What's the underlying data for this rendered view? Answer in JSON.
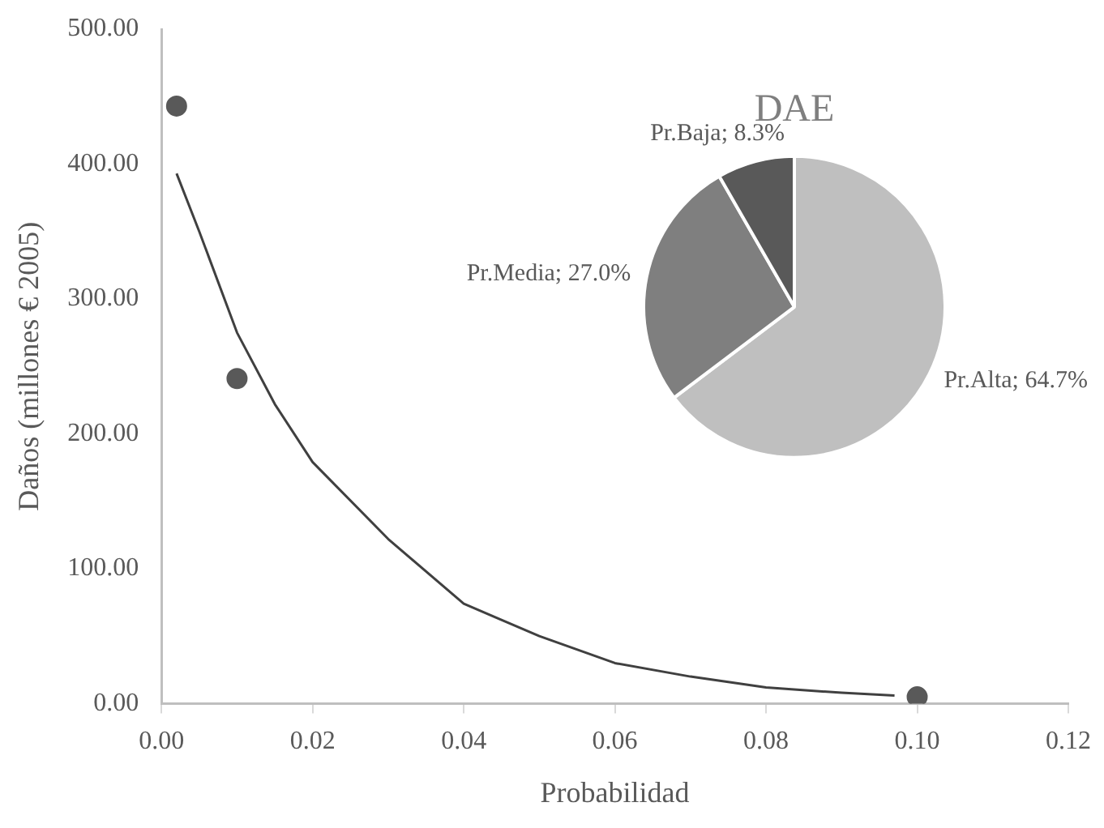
{
  "chart_data": [
    {
      "type": "scatter",
      "xlabel": "Probabilidad",
      "ylabel": "Daños (millones € 2005)",
      "xlim": [
        0,
        0.12
      ],
      "xticks": [
        {
          "value": 0,
          "label": "0.00"
        },
        {
          "value": 0.02,
          "label": "0.02"
        },
        {
          "value": 0.04,
          "label": "0.04"
        },
        {
          "value": 0.06,
          "label": "0.06"
        },
        {
          "value": 0.08,
          "label": "0.08"
        },
        {
          "value": 0.1,
          "label": "0.10"
        },
        {
          "value": 0.12,
          "label": "0.12"
        }
      ],
      "ylim": [
        0,
        500
      ],
      "yticks": [
        {
          "value": 0,
          "label": "0.00"
        },
        {
          "value": 100,
          "label": "100.00"
        },
        {
          "value": 200,
          "label": "200.00"
        },
        {
          "value": 300,
          "label": "300.00"
        },
        {
          "value": 400,
          "label": "400.00"
        },
        {
          "value": 500,
          "label": "500.00"
        }
      ],
      "grid": false,
      "legend": false,
      "series": [
        {
          "type": "line",
          "color": "#404040",
          "marker": "none",
          "line_style": "solid",
          "x": [
            0.002,
            0.005,
            0.01,
            0.015,
            0.02,
            0.03,
            0.04,
            0.05,
            0.06,
            0.07,
            0.08,
            0.09,
            0.097
          ],
          "values": [
            393,
            350,
            275,
            222,
            179,
            122,
            74,
            50,
            30,
            20,
            12,
            8,
            6
          ]
        },
        {
          "type": "scatter",
          "color": "#595959",
          "marker": "circle",
          "x": [
            0.002,
            0.01,
            0.1
          ],
          "values": [
            443,
            241,
            5
          ]
        }
      ]
    },
    {
      "type": "pie",
      "title": "DAE",
      "categories": [
        "Pr.Alta",
        "Pr.Media",
        "Pr.Baja"
      ],
      "values": [
        64.7,
        27.0,
        8.3
      ],
      "colors": [
        "#bfbfbf",
        "#7f7f7f",
        "#595959"
      ],
      "value_labels": [
        "64.7%",
        "27.0%",
        "8.3%"
      ],
      "legend": false
    }
  ]
}
